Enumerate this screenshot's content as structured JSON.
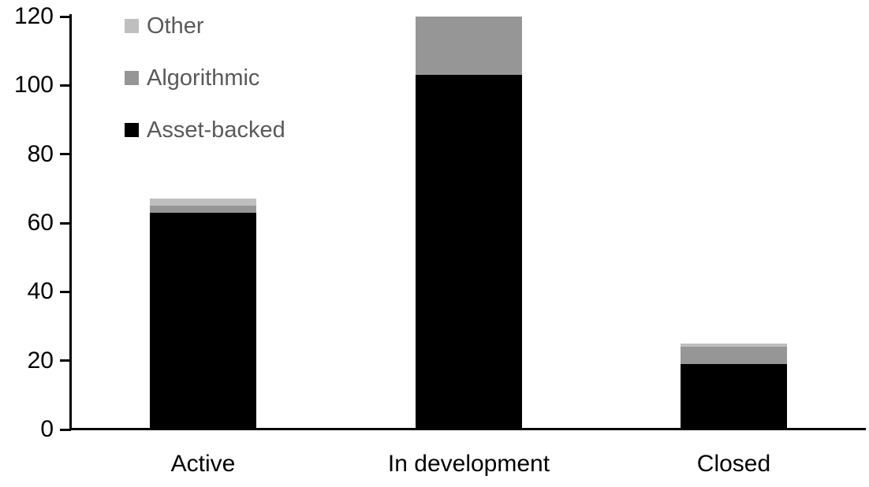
{
  "chart_data": {
    "type": "bar",
    "stacked": true,
    "title": "",
    "xlabel": "",
    "ylabel": "",
    "categories": [
      "Active",
      "In development",
      "Closed"
    ],
    "series": [
      {
        "name": "Asset-backed",
        "color": "#000000",
        "values": [
          63,
          103,
          19
        ]
      },
      {
        "name": "Algorithmic",
        "color": "#969696",
        "values": [
          2,
          17,
          5
        ]
      },
      {
        "name": "Other",
        "color": "#bfbfbf",
        "values": [
          2,
          0,
          1
        ]
      }
    ],
    "stack_totals": [
      67,
      120,
      25
    ],
    "ylim": [
      0,
      120
    ],
    "yticks": [
      0,
      20,
      40,
      60,
      80,
      100,
      120
    ],
    "grid": false,
    "legend_position": "top-left",
    "legend_order": [
      "Other",
      "Algorithmic",
      "Asset-backed"
    ]
  },
  "colors": {
    "background": "#ffffff",
    "axis": "#000000",
    "tick_label_text": "#000000",
    "category_label_text": "#000000",
    "legend_text": "#595959"
  }
}
